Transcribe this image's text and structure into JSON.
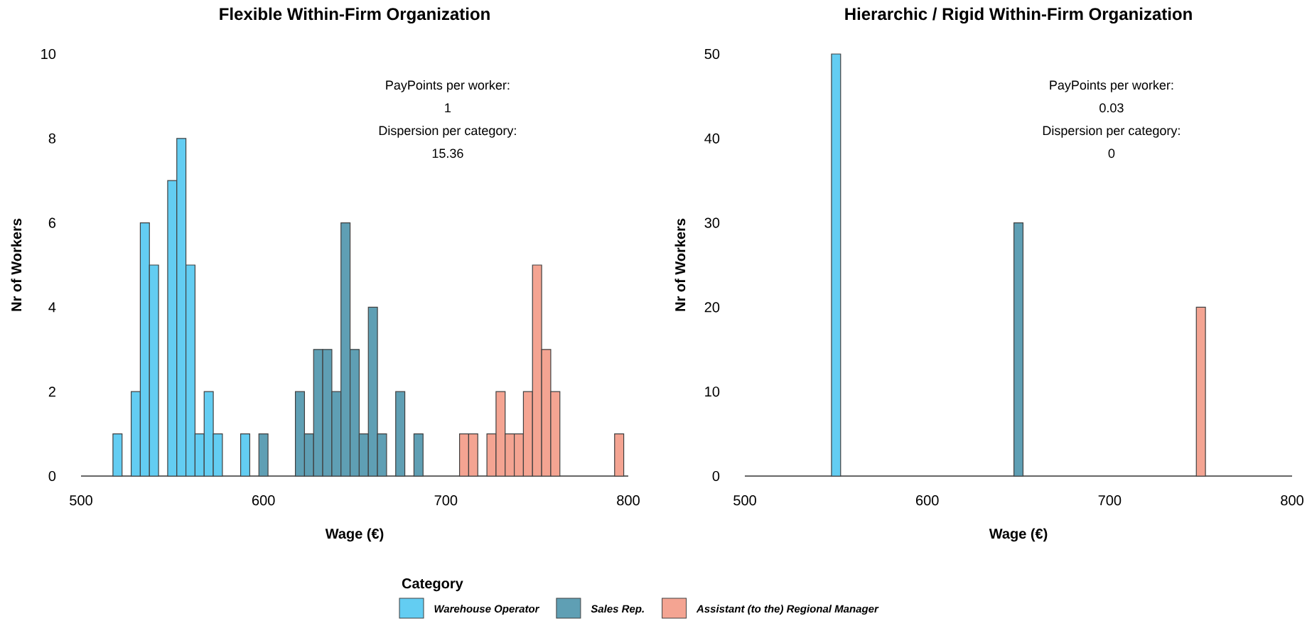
{
  "chart_data": [
    {
      "type": "histogram",
      "title": "Flexible Within-Firm Organization",
      "xlabel": "Wage (€)",
      "ylabel": "Nr of Workers",
      "legend_title": "Category",
      "legend": "bottom",
      "xlim": [
        500,
        800
      ],
      "xticks": [
        500,
        600,
        700,
        800
      ],
      "ylim": [
        0,
        10
      ],
      "yticks": [
        0,
        2,
        4,
        6,
        8,
        10
      ],
      "annotations": [
        "PayPoints per worker:",
        "1",
        "Dispersion per category:",
        "15.36"
      ],
      "bins": [
        517.5,
        522.5,
        527.5,
        532.5,
        537.5,
        542.5,
        547.5,
        552.5,
        557.5,
        562.5,
        567.5,
        572.5,
        577.5,
        582.5,
        587.5,
        592.5,
        597.5,
        602.5,
        607.5,
        612.5,
        617.5,
        622.5,
        627.5,
        632.5,
        637.5,
        642.5,
        647.5,
        652.5,
        657.5,
        662.5,
        667.5,
        672.5,
        677.5,
        682.5,
        687.5,
        692.5,
        697.5,
        702.5,
        707.5,
        712.5,
        717.5,
        722.5,
        727.5,
        732.5,
        737.5,
        742.5,
        747.5,
        752.5,
        757.5,
        762.5,
        767.5,
        772.5,
        777.5,
        782.5,
        787.5,
        792.5,
        797.5
      ],
      "series": [
        {
          "name": "Warehouse Operator",
          "color": "#63cdf2",
          "values": [
            1,
            0,
            2,
            6,
            5,
            0,
            7,
            8,
            5,
            1,
            2,
            1,
            0,
            0,
            1,
            0,
            0,
            0,
            0,
            0,
            0,
            0,
            0,
            0,
            0,
            0,
            0,
            0,
            0,
            0,
            0,
            0,
            0,
            0,
            0,
            0,
            0,
            0,
            0,
            0,
            0,
            0,
            0,
            0,
            0,
            0,
            0,
            0,
            0,
            0,
            0,
            0,
            0,
            0,
            0,
            0
          ]
        },
        {
          "name": "Sales Rep.",
          "color": "#5f9fb4",
          "values": [
            0,
            0,
            0,
            0,
            0,
            0,
            0,
            0,
            0,
            0,
            0,
            0,
            0,
            0,
            0,
            0,
            1,
            0,
            0,
            0,
            2,
            1,
            3,
            3,
            2,
            6,
            3,
            1,
            4,
            1,
            0,
            2,
            0,
            1,
            0,
            0,
            0,
            0,
            0,
            0,
            0,
            0,
            0,
            0,
            0,
            0,
            0,
            0,
            0,
            0,
            0,
            0,
            0,
            0,
            0,
            0
          ]
        },
        {
          "name": "Assistant (to the) Regional Manager",
          "color": "#f4a492",
          "values": [
            0,
            0,
            0,
            0,
            0,
            0,
            0,
            0,
            0,
            0,
            0,
            0,
            0,
            0,
            0,
            0,
            0,
            0,
            0,
            0,
            0,
            0,
            0,
            0,
            0,
            0,
            0,
            0,
            0,
            0,
            0,
            0,
            0,
            0,
            0,
            0,
            0,
            0,
            1,
            1,
            0,
            1,
            2,
            1,
            1,
            2,
            5,
            3,
            2,
            0,
            0,
            0,
            0,
            0,
            0,
            1
          ]
        }
      ]
    },
    {
      "type": "histogram",
      "title": "Hierarchic / Rigid Within-Firm Organization",
      "xlabel": "Wage (€)",
      "ylabel": "Nr of Workers",
      "xlim": [
        500,
        800
      ],
      "xticks": [
        500,
        600,
        700,
        800
      ],
      "ylim": [
        0,
        50
      ],
      "yticks": [
        0,
        10,
        20,
        30,
        40,
        50
      ],
      "annotations": [
        "PayPoints per worker:",
        "0.03",
        "Dispersion per category:",
        "0"
      ],
      "bins": [
        547.5,
        552.5,
        557.5,
        562.5,
        567.5,
        572.5,
        577.5,
        582.5,
        587.5,
        592.5,
        597.5,
        602.5,
        607.5,
        612.5,
        617.5,
        622.5,
        627.5,
        632.5,
        637.5,
        642.5,
        647.5,
        652.5,
        657.5,
        662.5,
        667.5,
        672.5,
        677.5,
        682.5,
        687.5,
        692.5,
        697.5,
        702.5,
        707.5,
        712.5,
        717.5,
        722.5,
        727.5,
        732.5,
        737.5,
        742.5,
        747.5,
        752.5
      ],
      "series": [
        {
          "color": "#63cdf2",
          "values": [
            50,
            0,
            0,
            0,
            0,
            0,
            0,
            0,
            0,
            0,
            0,
            0,
            0,
            0,
            0,
            0,
            0,
            0,
            0,
            0,
            0,
            0,
            0,
            0,
            0,
            0,
            0,
            0,
            0,
            0,
            0,
            0,
            0,
            0,
            0,
            0,
            0,
            0,
            0,
            0,
            0
          ]
        },
        {
          "color": "#5f9fb4",
          "values": [
            0,
            0,
            0,
            0,
            0,
            0,
            0,
            0,
            0,
            0,
            0,
            0,
            0,
            0,
            0,
            0,
            0,
            0,
            0,
            0,
            30,
            0,
            0,
            0,
            0,
            0,
            0,
            0,
            0,
            0,
            0,
            0,
            0,
            0,
            0,
            0,
            0,
            0,
            0,
            0,
            0
          ]
        },
        {
          "color": "#f4a492",
          "values": [
            0,
            0,
            0,
            0,
            0,
            0,
            0,
            0,
            0,
            0,
            0,
            0,
            0,
            0,
            0,
            0,
            0,
            0,
            0,
            0,
            0,
            0,
            0,
            0,
            0,
            0,
            0,
            0,
            0,
            0,
            0,
            0,
            0,
            0,
            0,
            0,
            0,
            0,
            0,
            0,
            20
          ]
        }
      ]
    }
  ]
}
